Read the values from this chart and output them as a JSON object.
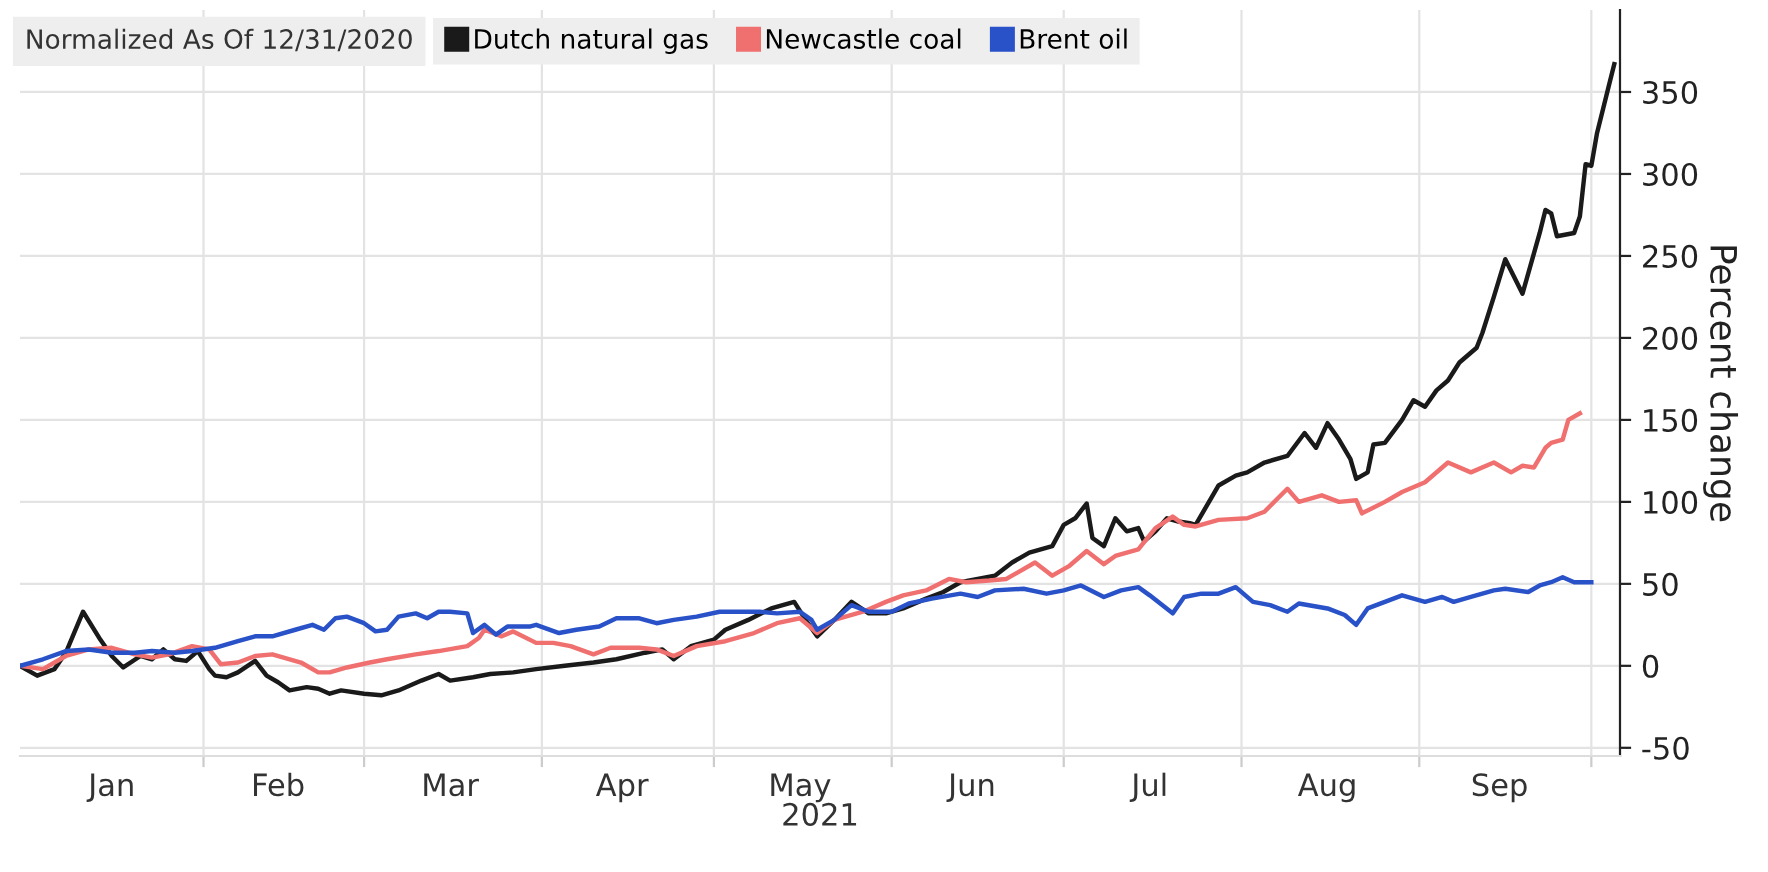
{
  "chart_data": {
    "type": "line",
    "title": "Normalized As Of 12/31/2020",
    "xlabel": "2021",
    "ylabel": "Percent change",
    "xlim": [
      "2020-12-31",
      "2021-10-06"
    ],
    "xticks": [
      {
        "value": "2021-02-01",
        "label": null
      },
      {
        "value": "2021-03-01",
        "label": null
      },
      {
        "value": "2021-04-01",
        "label": null
      },
      {
        "value": "2021-05-01",
        "label": null
      },
      {
        "value": "2021-06-01",
        "label": null
      },
      {
        "value": "2021-07-01",
        "label": null
      },
      {
        "value": "2021-08-01",
        "label": null
      },
      {
        "value": "2021-09-01",
        "label": null
      },
      {
        "value": "2021-10-01",
        "label": null
      },
      {
        "value": "2021-01-16",
        "label": "Jan"
      },
      {
        "value": "2021-02-14",
        "label": "Feb"
      },
      {
        "value": "2021-03-16",
        "label": "Mar"
      },
      {
        "value": "2021-04-15",
        "label": "Apr"
      },
      {
        "value": "2021-05-16",
        "label": "May"
      },
      {
        "value": "2021-06-15",
        "label": "Jun"
      },
      {
        "value": "2021-07-16",
        "label": "Jul"
      },
      {
        "value": "2021-08-16",
        "label": "Aug"
      },
      {
        "value": "2021-09-15",
        "label": "Sep"
      }
    ],
    "ylim": [
      -55,
      400
    ],
    "yticks": [
      -50,
      0,
      50,
      100,
      150,
      200,
      250,
      300,
      350
    ],
    "grid": true,
    "legend": "top left",
    "series": [
      {
        "name": "Dutch natural gas",
        "color": "#1a1a1a",
        "x": [
          "2020-12-31",
          "2021-01-03",
          "2021-01-06",
          "2021-01-08",
          "2021-01-11",
          "2021-01-14",
          "2021-01-16",
          "2021-01-18",
          "2021-01-21",
          "2021-01-23",
          "2021-01-25",
          "2021-01-27",
          "2021-01-29",
          "2021-01-31",
          "2021-02-02",
          "2021-02-03",
          "2021-02-05",
          "2021-02-07",
          "2021-02-10",
          "2021-02-12",
          "2021-02-14",
          "2021-02-16",
          "2021-02-19",
          "2021-02-21",
          "2021-02-23",
          "2021-02-25",
          "2021-03-01",
          "2021-03-04",
          "2021-03-07",
          "2021-03-11",
          "2021-03-14",
          "2021-03-16",
          "2021-03-20",
          "2021-03-23",
          "2021-03-27",
          "2021-03-31",
          "2021-04-05",
          "2021-04-10",
          "2021-04-14",
          "2021-04-19",
          "2021-04-22",
          "2021-04-24",
          "2021-04-27",
          "2021-05-01",
          "2021-05-03",
          "2021-05-07",
          "2021-05-11",
          "2021-05-15",
          "2021-05-17",
          "2021-05-19",
          "2021-05-22",
          "2021-05-25",
          "2021-05-28",
          "2021-05-31",
          "2021-06-03",
          "2021-06-07",
          "2021-06-10",
          "2021-06-13",
          "2021-06-19",
          "2021-06-22",
          "2021-06-25",
          "2021-06-29",
          "2021-07-01",
          "2021-07-03",
          "2021-07-05",
          "2021-07-06",
          "2021-07-08",
          "2021-07-10",
          "2021-07-12",
          "2021-07-14",
          "2021-07-15",
          "2021-07-17",
          "2021-07-19",
          "2021-07-21",
          "2021-07-23",
          "2021-07-24",
          "2021-07-26",
          "2021-07-28",
          "2021-07-31",
          "2021-08-02",
          "2021-08-05",
          "2021-08-09",
          "2021-08-12",
          "2021-08-14",
          "2021-08-16",
          "2021-08-18",
          "2021-08-20",
          "2021-08-21",
          "2021-08-23",
          "2021-08-24",
          "2021-08-26",
          "2021-08-29",
          "2021-08-31",
          "2021-09-02",
          "2021-09-04",
          "2021-09-06",
          "2021-09-08",
          "2021-09-11",
          "2021-09-12",
          "2021-09-14",
          "2021-09-16",
          "2021-09-19",
          "2021-09-22",
          "2021-09-23",
          "2021-09-24",
          "2021-09-25",
          "2021-09-28",
          "2021-09-29",
          "2021-09-30",
          "2021-10-01",
          "2021-10-02",
          "2021-10-04",
          "2021-10-05"
        ],
        "values": [
          0,
          -6,
          -2,
          8,
          33,
          16,
          6,
          -1,
          6,
          4,
          10,
          4,
          3,
          9,
          -2,
          -6,
          -7,
          -4,
          3,
          -6,
          -10,
          -15,
          -13,
          -14,
          -17,
          -15,
          -17,
          -18,
          -15,
          -9,
          -5,
          -9,
          -7,
          -5,
          -4,
          -2,
          0,
          2,
          4,
          8,
          10,
          4,
          12,
          16,
          22,
          28,
          35,
          39,
          28,
          18,
          28,
          39,
          32,
          32,
          35,
          41,
          45,
          51,
          55,
          63,
          69,
          73,
          86,
          90,
          99,
          78,
          73,
          90,
          82,
          84,
          76,
          82,
          90,
          88,
          87,
          86,
          98,
          110,
          116,
          118,
          124,
          128,
          142,
          133,
          148,
          138,
          126,
          114,
          118,
          135,
          136,
          150,
          162,
          158,
          168,
          174,
          185,
          194,
          203,
          225,
          248,
          227,
          264,
          278,
          276,
          262,
          264,
          274,
          306,
          305,
          325,
          353,
          367
        ]
      },
      {
        "name": "Newcastle coal",
        "color": "#f07070",
        "x": [
          "2020-12-31",
          "2021-01-04",
          "2021-01-08",
          "2021-01-12",
          "2021-01-16",
          "2021-01-20",
          "2021-01-23",
          "2021-01-26",
          "2021-01-30",
          "2021-02-02",
          "2021-02-04",
          "2021-02-07",
          "2021-02-10",
          "2021-02-13",
          "2021-02-18",
          "2021-02-21",
          "2021-02-23",
          "2021-02-26",
          "2021-03-02",
          "2021-03-05",
          "2021-03-10",
          "2021-03-14",
          "2021-03-19",
          "2021-03-21",
          "2021-03-22",
          "2021-03-25",
          "2021-03-27",
          "2021-03-31",
          "2021-04-03",
          "2021-04-06",
          "2021-04-10",
          "2021-04-13",
          "2021-04-18",
          "2021-04-21",
          "2021-04-24",
          "2021-04-28",
          "2021-05-03",
          "2021-05-08",
          "2021-05-12",
          "2021-05-16",
          "2021-05-19",
          "2021-05-22",
          "2021-05-27",
          "2021-05-31",
          "2021-06-03",
          "2021-06-07",
          "2021-06-11",
          "2021-06-14",
          "2021-06-18",
          "2021-06-21",
          "2021-06-23",
          "2021-06-26",
          "2021-06-29",
          "2021-07-02",
          "2021-07-05",
          "2021-07-08",
          "2021-07-10",
          "2021-07-14",
          "2021-07-17",
          "2021-07-20",
          "2021-07-22",
          "2021-07-24",
          "2021-07-28",
          "2021-08-02",
          "2021-08-05",
          "2021-08-09",
          "2021-08-11",
          "2021-08-15",
          "2021-08-18",
          "2021-08-21",
          "2021-08-22",
          "2021-08-26",
          "2021-08-29",
          "2021-09-02",
          "2021-09-06",
          "2021-09-10",
          "2021-09-14",
          "2021-09-17",
          "2021-09-19",
          "2021-09-21",
          "2021-09-23",
          "2021-09-24",
          "2021-09-26",
          "2021-09-27",
          "2021-09-29"
        ],
        "values": [
          0,
          -2,
          6,
          10,
          11,
          7,
          5,
          7,
          12,
          10,
          1,
          2,
          6,
          7,
          2,
          -4,
          -4,
          -1,
          2,
          4,
          7,
          9,
          12,
          17,
          22,
          18,
          21,
          14,
          14,
          12,
          7,
          11,
          11,
          10,
          6,
          12,
          15,
          20,
          26,
          29,
          20,
          28,
          33,
          39,
          43,
          46,
          53,
          51,
          52,
          53,
          57,
          63,
          55,
          61,
          70,
          62,
          67,
          71,
          84,
          91,
          86,
          85,
          89,
          90,
          94,
          108,
          100,
          104,
          100,
          101,
          93,
          100,
          106,
          112,
          124,
          118,
          124,
          118,
          122,
          121,
          133,
          136,
          138,
          150,
          154
        ]
      },
      {
        "name": "Brent oil",
        "color": "#2a52c8",
        "x": [
          "2020-12-31",
          "2021-01-04",
          "2021-01-08",
          "2021-01-12",
          "2021-01-16",
          "2021-01-20",
          "2021-01-23",
          "2021-01-27",
          "2021-01-30",
          "2021-02-03",
          "2021-02-07",
          "2021-02-10",
          "2021-02-13",
          "2021-02-17",
          "2021-02-20",
          "2021-02-22",
          "2021-02-24",
          "2021-02-26",
          "2021-03-01",
          "2021-03-03",
          "2021-03-05",
          "2021-03-07",
          "2021-03-10",
          "2021-03-12",
          "2021-03-14",
          "2021-03-16",
          "2021-03-19",
          "2021-03-20",
          "2021-03-22",
          "2021-03-24",
          "2021-03-26",
          "2021-03-30",
          "2021-03-31",
          "2021-04-04",
          "2021-04-07",
          "2021-04-11",
          "2021-04-14",
          "2021-04-18",
          "2021-04-21",
          "2021-04-24",
          "2021-04-28",
          "2021-05-02",
          "2021-05-05",
          "2021-05-09",
          "2021-05-12",
          "2021-05-16",
          "2021-05-18",
          "2021-05-19",
          "2021-05-22",
          "2021-05-25",
          "2021-05-28",
          "2021-06-01",
          "2021-06-04",
          "2021-06-08",
          "2021-06-13",
          "2021-06-16",
          "2021-06-19",
          "2021-06-24",
          "2021-06-28",
          "2021-07-01",
          "2021-07-04",
          "2021-07-08",
          "2021-07-11",
          "2021-07-14",
          "2021-07-16",
          "2021-07-20",
          "2021-07-22",
          "2021-07-25",
          "2021-07-28",
          "2021-07-31",
          "2021-08-03",
          "2021-08-06",
          "2021-08-09",
          "2021-08-11",
          "2021-08-16",
          "2021-08-19",
          "2021-08-21",
          "2021-08-23",
          "2021-08-26",
          "2021-08-29",
          "2021-09-02",
          "2021-09-05",
          "2021-09-07",
          "2021-09-10",
          "2021-09-12",
          "2021-09-14",
          "2021-09-16",
          "2021-09-20",
          "2021-09-22",
          "2021-09-24",
          "2021-09-26",
          "2021-09-28",
          "2021-10-01"
        ],
        "values": [
          0,
          4,
          9,
          10,
          8,
          8,
          9,
          8,
          9,
          11,
          15,
          18,
          18,
          22,
          25,
          22,
          29,
          30,
          26,
          21,
          22,
          30,
          32,
          29,
          33,
          33,
          32,
          20,
          25,
          19,
          24,
          24,
          25,
          20,
          22,
          24,
          29,
          29,
          26,
          28,
          30,
          33,
          33,
          33,
          32,
          33,
          28,
          22,
          28,
          37,
          33,
          33,
          38,
          41,
          44,
          42,
          46,
          47,
          44,
          46,
          49,
          42,
          46,
          48,
          43,
          32,
          42,
          44,
          44,
          48,
          39,
          37,
          33,
          38,
          35,
          31,
          25,
          35,
          39,
          43,
          39,
          42,
          39,
          42,
          44,
          46,
          47,
          45,
          49,
          51,
          54,
          51,
          51
        ]
      }
    ]
  }
}
